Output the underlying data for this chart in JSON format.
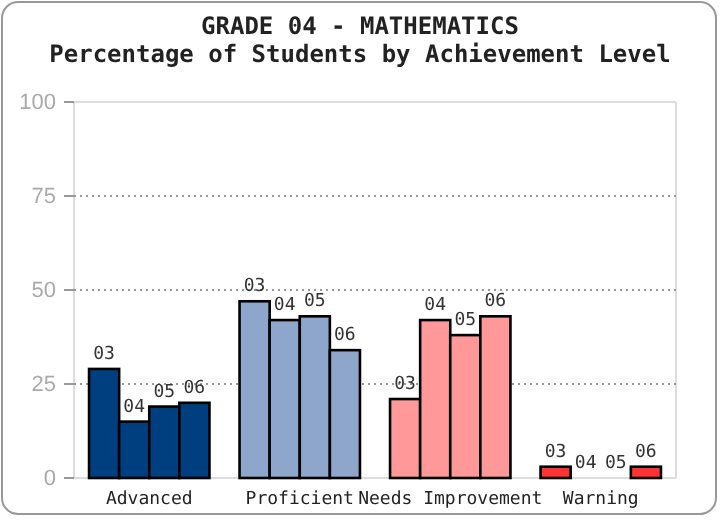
{
  "chart_data": {
    "type": "bar",
    "title": "GRADE 04 - MATHEMATICS",
    "subtitle": "Percentage of Students by Achievement Level",
    "categories": [
      "Advanced",
      "Proficient",
      "Needs Improvement",
      "Warning"
    ],
    "series": [
      {
        "name": "03",
        "colors": [
          "#003f7f",
          "#8ea5cc",
          "#ff9999",
          "#ff3333"
        ],
        "values": [
          29,
          47,
          21,
          3
        ]
      },
      {
        "name": "04",
        "colors": [
          "#003f7f",
          "#8ea5cc",
          "#ff9999",
          "#ff3333"
        ],
        "values": [
          15,
          42,
          42,
          0
        ]
      },
      {
        "name": "05",
        "colors": [
          "#003f7f",
          "#8ea5cc",
          "#ff9999",
          "#ff3333"
        ],
        "values": [
          19,
          43,
          38,
          0
        ]
      },
      {
        "name": "06",
        "colors": [
          "#003f7f",
          "#8ea5cc",
          "#ff9999",
          "#ff3333"
        ],
        "values": [
          20,
          34,
          43,
          3
        ]
      }
    ],
    "ylim": [
      0,
      100
    ],
    "yticks": [
      0,
      25,
      50,
      75,
      100
    ],
    "grid": "y"
  }
}
